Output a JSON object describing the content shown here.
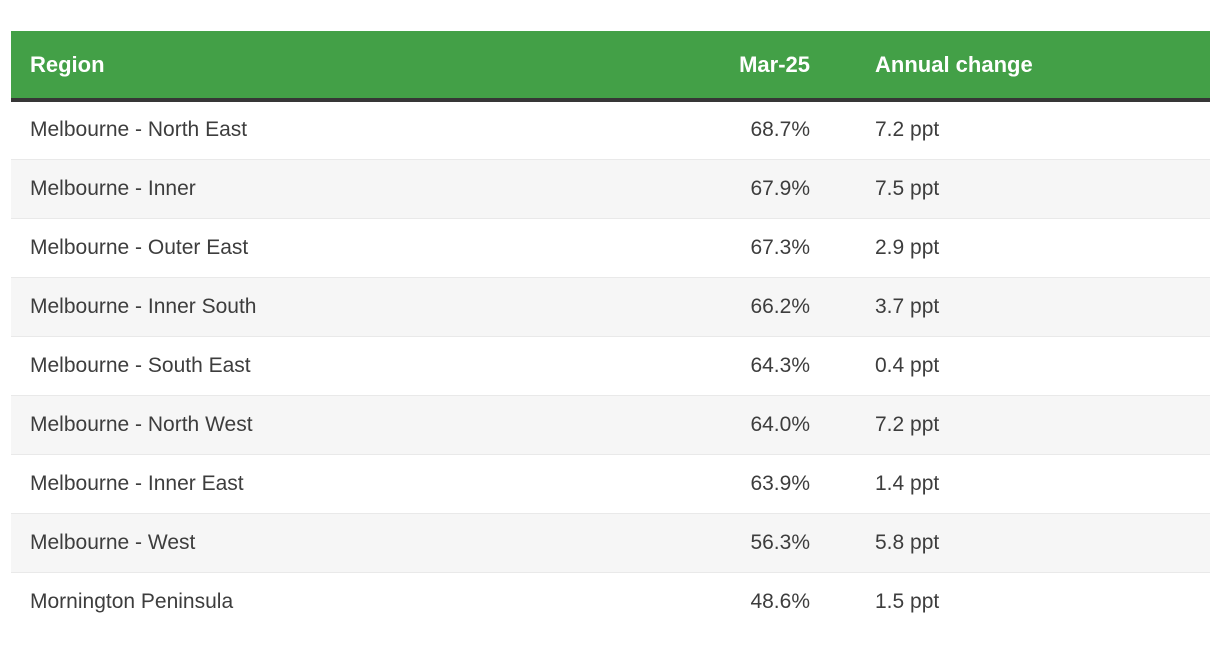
{
  "colors": {
    "header_bg": "#43a047",
    "header_text": "#ffffff",
    "header_underline": "#363636",
    "row_alt_bg": "#f6f6f6",
    "row_border": "#e9e9e9",
    "body_text": "#3d3d3d"
  },
  "chart_data": {
    "type": "table",
    "columns": [
      "Region",
      "Mar-25",
      "Annual change"
    ],
    "rows": [
      {
        "region": "Melbourne - North East",
        "mar_25": "68.7%",
        "annual_change": "7.2 ppt"
      },
      {
        "region": "Melbourne - Inner",
        "mar_25": "67.9%",
        "annual_change": "7.5 ppt"
      },
      {
        "region": "Melbourne - Outer East",
        "mar_25": "67.3%",
        "annual_change": "2.9 ppt"
      },
      {
        "region": "Melbourne - Inner South",
        "mar_25": "66.2%",
        "annual_change": "3.7 ppt"
      },
      {
        "region": "Melbourne - South East",
        "mar_25": "64.3%",
        "annual_change": "0.4 ppt"
      },
      {
        "region": "Melbourne - North West",
        "mar_25": "64.0%",
        "annual_change": "7.2 ppt"
      },
      {
        "region": "Melbourne - Inner East",
        "mar_25": "63.9%",
        "annual_change": "1.4 ppt"
      },
      {
        "region": "Melbourne - West",
        "mar_25": "56.3%",
        "annual_change": "5.8 ppt"
      },
      {
        "region": "Mornington Peninsula",
        "mar_25": "48.6%",
        "annual_change": "1.5 ppt"
      }
    ]
  }
}
